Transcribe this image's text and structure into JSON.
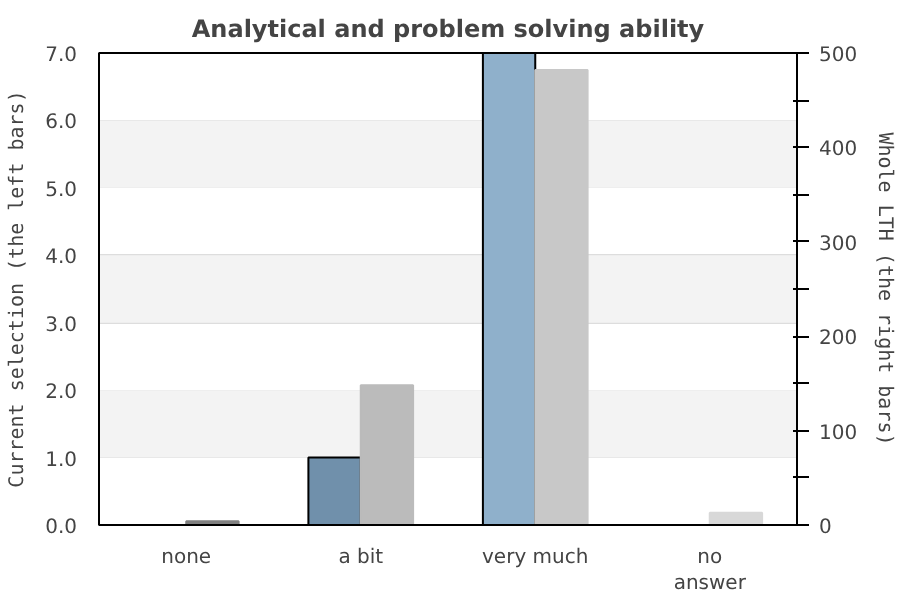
{
  "chart_data": {
    "type": "bar",
    "title": "Analytical and problem solving ability",
    "ylabel": "Current selection (the left bars)",
    "y2label": "Whole LTH (the right bars)",
    "categories": [
      "none",
      "a bit",
      "very much",
      "no\nanswer"
    ],
    "series": [
      {
        "colors": [
          "#7090ab",
          "#7090ab",
          "#8fb0cb",
          "#8fb0cb"
        ],
        "values": [
          0,
          1,
          7,
          0
        ]
      },
      {
        "axis": "y2",
        "colors": [
          "#808080",
          "#bbbbbb",
          "#c8c8c8",
          "#d8d8d8"
        ],
        "values": [
          4,
          148,
          482,
          13
        ]
      }
    ],
    "ylim": [
      0,
      7
    ],
    "yticks": [
      {
        "value": 0,
        "label": "0.0"
      },
      {
        "value": 1,
        "label": "1.0"
      },
      {
        "value": 2,
        "label": "2.0"
      },
      {
        "value": 3,
        "label": "3.0"
      },
      {
        "value": 4,
        "label": "4.0"
      },
      {
        "value": 5,
        "label": "5.0"
      },
      {
        "value": 6,
        "label": "6.0"
      },
      {
        "value": 7,
        "label": "7.0"
      }
    ],
    "y2lim": [
      0,
      500
    ],
    "y2ticks": [
      0,
      {
        "value": 50,
        "label": null
      },
      100,
      {
        "value": 150,
        "label": null
      },
      200,
      {
        "value": 250,
        "label": null
      },
      300,
      {
        "value": 350,
        "label": null
      },
      400,
      {
        "value": 450,
        "label": null
      },
      500
    ],
    "bands": [
      {
        "axis": "y",
        "from": 1,
        "to": 2,
        "color": "#f3f3f3"
      },
      {
        "axis": "y",
        "from": 3,
        "to": 4,
        "color": "#f3f3f3"
      },
      {
        "axis": "y",
        "from": 5,
        "to": 6,
        "color": "#f3f3f3"
      }
    ],
    "grid": "y"
  }
}
